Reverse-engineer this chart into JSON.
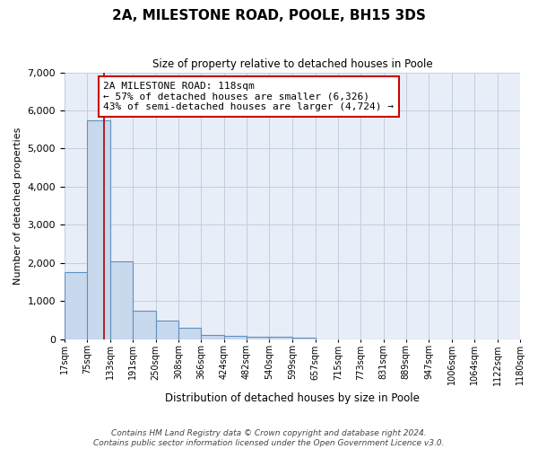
{
  "title": "2A, MILESTONE ROAD, POOLE, BH15 3DS",
  "subtitle": "Size of property relative to detached houses in Poole",
  "xlabel": "Distribution of detached houses by size in Poole",
  "ylabel": "Number of detached properties",
  "bin_labels": [
    "17sqm",
    "75sqm",
    "133sqm",
    "191sqm",
    "250sqm",
    "308sqm",
    "366sqm",
    "424sqm",
    "482sqm",
    "540sqm",
    "599sqm",
    "657sqm",
    "715sqm",
    "773sqm",
    "831sqm",
    "889sqm",
    "947sqm",
    "1006sqm",
    "1064sqm",
    "1122sqm",
    "1180sqm"
  ],
  "bar_values": [
    1750,
    5750,
    2050,
    750,
    480,
    290,
    120,
    90,
    65,
    50,
    35,
    0,
    0,
    0,
    0,
    0,
    0,
    0,
    0,
    0
  ],
  "bar_color": "#c8d8ed",
  "bar_edge_color": "#6090c0",
  "grid_color": "#c0cfe0",
  "bg_color": "#e8eef8",
  "ylim": [
    0,
    7000
  ],
  "yticks": [
    0,
    1000,
    2000,
    3000,
    4000,
    5000,
    6000,
    7000
  ],
  "property_size": 118,
  "property_label": "2A MILESTONE ROAD: 118sqm",
  "annotation_line1": "← 57% of detached houses are smaller (6,326)",
  "annotation_line2": "43% of semi-detached houses are larger (4,724) →",
  "red_line_color": "#aa0000",
  "annotation_box_color": "#cc0000",
  "footnote1": "Contains HM Land Registry data © Crown copyright and database right 2024.",
  "footnote2": "Contains public sector information licensed under the Open Government Licence v3.0.",
  "bin_edges": [
    17,
    75,
    133,
    191,
    250,
    308,
    366,
    424,
    482,
    540,
    599,
    657,
    715,
    773,
    831,
    889,
    947,
    1006,
    1064,
    1122,
    1180
  ]
}
